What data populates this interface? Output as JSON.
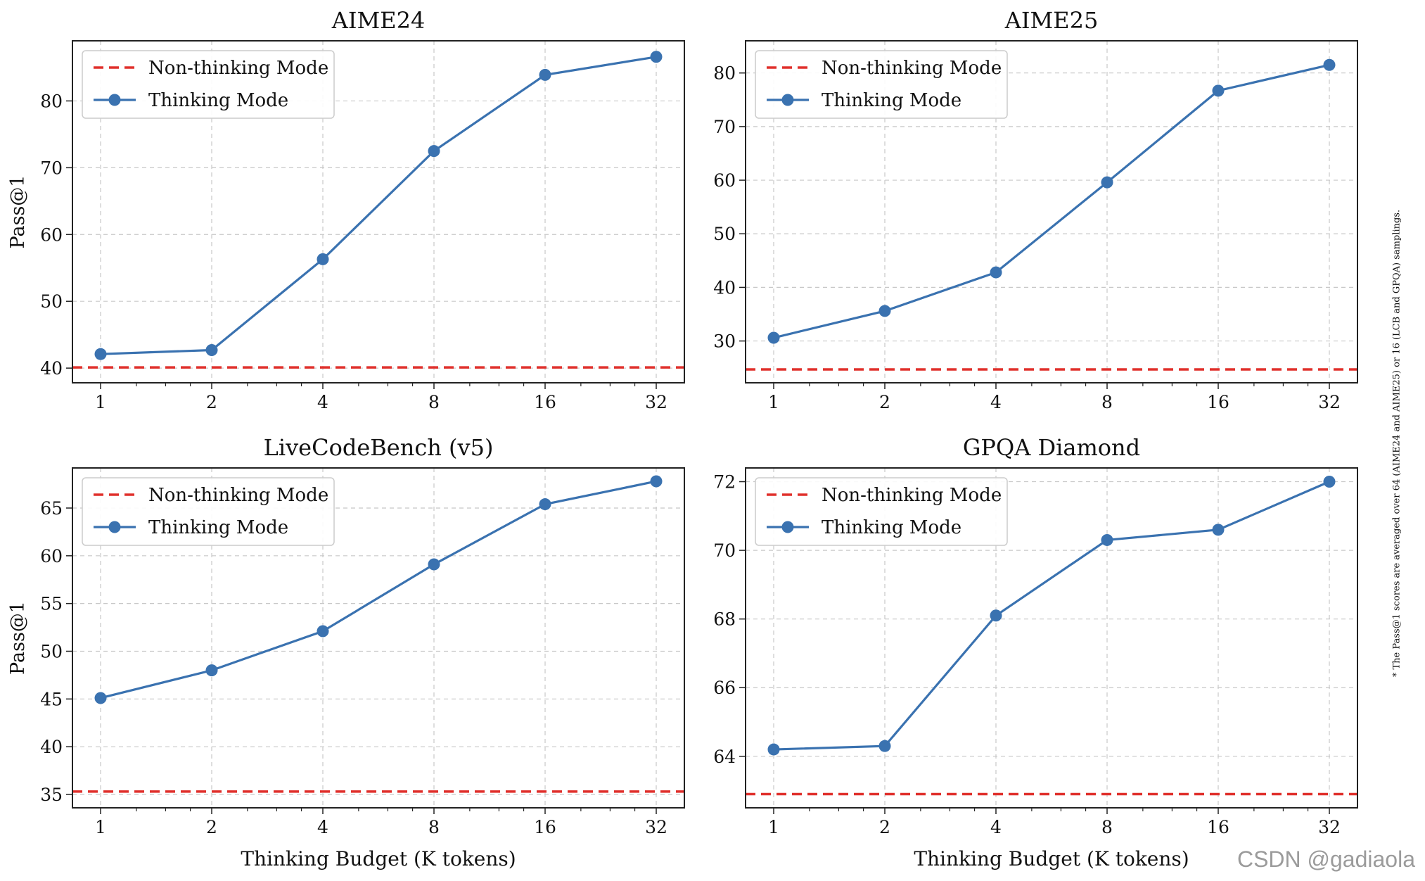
{
  "figure": {
    "footnote": "* The Pass@1 scores are averaged over 64 (AIME24 and AIME25) or 16 (LCB and GPQA) samplings.",
    "watermark": "CSDN @gadiaola"
  },
  "colors": {
    "thinking": "#3a72b0",
    "non_thinking": "#e0302c",
    "grid": "#c8c8c8",
    "axis": "#222222"
  },
  "chart_data": [
    {
      "type": "line",
      "title": "AIME24",
      "xlabel": "",
      "ylabel": "Pass@1",
      "xscale": "log2",
      "x": [
        1,
        2,
        4,
        8,
        16,
        32
      ],
      "xticklabels": [
        "1",
        "2",
        "4",
        "8",
        "16",
        "32"
      ],
      "ylim": [
        37.8,
        89
      ],
      "yticks": [
        40,
        50,
        60,
        70,
        80
      ],
      "grid": true,
      "legend": "top-left",
      "series": [
        {
          "name": "Non-thinking Mode",
          "style": "dashed-hline",
          "value": 40.1
        },
        {
          "name": "Thinking Mode",
          "style": "line-marker",
          "values": [
            42.1,
            42.7,
            56.3,
            72.5,
            83.9,
            86.6
          ]
        }
      ]
    },
    {
      "type": "line",
      "title": "AIME25",
      "xlabel": "",
      "ylabel": "",
      "xscale": "log2",
      "x": [
        1,
        2,
        4,
        8,
        16,
        32
      ],
      "xticklabels": [
        "1",
        "2",
        "4",
        "8",
        "16",
        "32"
      ],
      "ylim": [
        22.2,
        86
      ],
      "yticks": [
        30,
        40,
        50,
        60,
        70,
        80
      ],
      "grid": true,
      "legend": "top-left",
      "series": [
        {
          "name": "Non-thinking Mode",
          "style": "dashed-hline",
          "value": 24.7
        },
        {
          "name": "Thinking Mode",
          "style": "line-marker",
          "values": [
            30.6,
            35.6,
            42.8,
            59.6,
            76.7,
            81.5
          ]
        }
      ]
    },
    {
      "type": "line",
      "title": "LiveCodeBench (v5)",
      "xlabel": "Thinking Budget (K tokens)",
      "ylabel": "Pass@1",
      "xscale": "log2",
      "x": [
        1,
        2,
        4,
        8,
        16,
        32
      ],
      "xticklabels": [
        "1",
        "2",
        "4",
        "8",
        "16",
        "32"
      ],
      "ylim": [
        33.6,
        69.2
      ],
      "yticks": [
        35,
        40,
        45,
        50,
        55,
        60,
        65
      ],
      "grid": true,
      "legend": "top-left",
      "series": [
        {
          "name": "Non-thinking Mode",
          "style": "dashed-hline",
          "value": 35.3
        },
        {
          "name": "Thinking Mode",
          "style": "line-marker",
          "values": [
            45.1,
            48.0,
            52.1,
            59.1,
            65.4,
            67.8
          ]
        }
      ]
    },
    {
      "type": "line",
      "title": "GPQA Diamond",
      "xlabel": "Thinking Budget (K tokens)",
      "ylabel": "",
      "xscale": "log2",
      "x": [
        1,
        2,
        4,
        8,
        16,
        32
      ],
      "xticklabels": [
        "1",
        "2",
        "4",
        "8",
        "16",
        "32"
      ],
      "ylim": [
        62.5,
        72.4
      ],
      "yticks": [
        64,
        66,
        68,
        70,
        72
      ],
      "grid": true,
      "legend": "top-left",
      "series": [
        {
          "name": "Non-thinking Mode",
          "style": "dashed-hline",
          "value": 62.9
        },
        {
          "name": "Thinking Mode",
          "style": "line-marker",
          "values": [
            64.2,
            64.3,
            68.1,
            70.3,
            70.6,
            72.0
          ]
        }
      ]
    }
  ]
}
